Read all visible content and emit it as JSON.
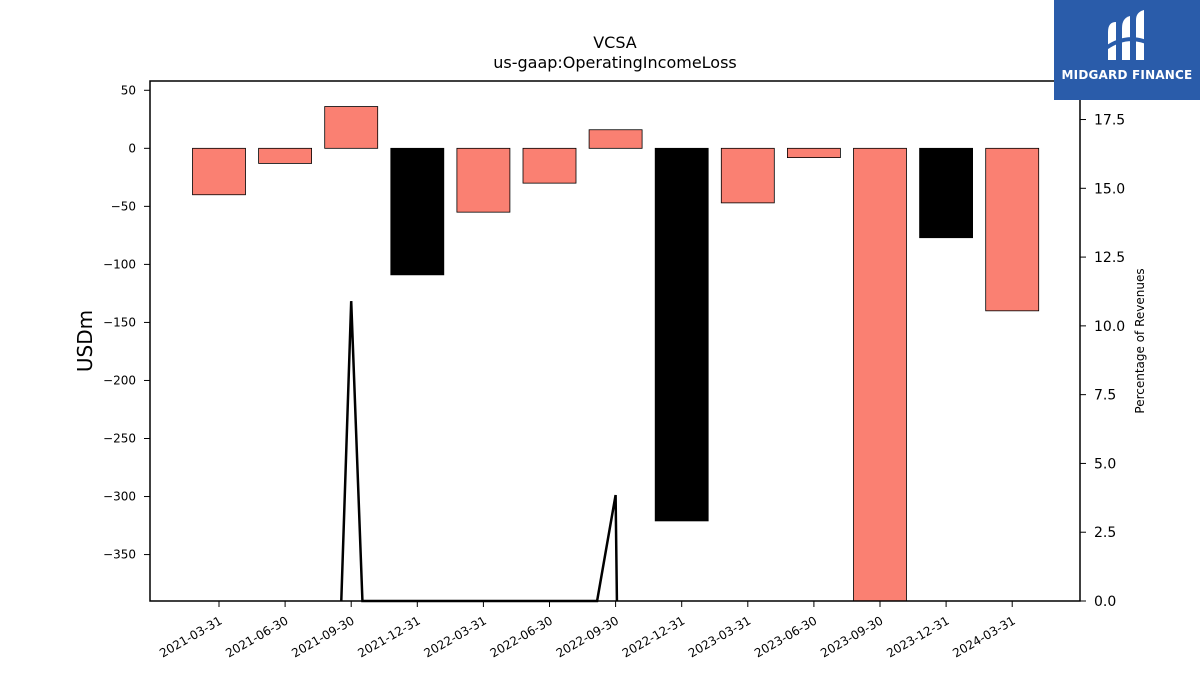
{
  "chart_data": {
    "type": "bar",
    "title": "VCSA",
    "subtitle": "us-gaap:OperatingIncomeLoss",
    "ylabel": "USDm",
    "y2label": "Percentage of Revenues",
    "categories": [
      "2021-03-31",
      "2021-06-30",
      "2021-09-30",
      "2021-12-31",
      "2022-03-31",
      "2022-06-30",
      "2022-09-30",
      "2022-12-31",
      "2023-03-31",
      "2023-06-30",
      "2023-09-30",
      "2023-12-31",
      "2024-03-31"
    ],
    "values": [
      -40,
      -13,
      36,
      -109,
      -55,
      -30,
      16,
      -321,
      -47,
      -8,
      -390,
      -77,
      -140
    ],
    "bar_colors": [
      "#fa8072",
      "#fa8072",
      "#fa8072",
      "#000000",
      "#fa8072",
      "#fa8072",
      "#fa8072",
      "#000000",
      "#fa8072",
      "#fa8072",
      "#fa8072",
      "#000000",
      "#fa8072"
    ],
    "ylim": [
      -390,
      58
    ],
    "yticks": [
      50,
      0,
      -50,
      -100,
      -150,
      -200,
      -250,
      -300,
      -350
    ],
    "ytick_labels": [
      "50",
      "0",
      "−50",
      "−100",
      "−150",
      "−200",
      "−250",
      "−300",
      "−350"
    ],
    "y2lim": [
      0,
      18.9
    ],
    "y2ticks": [
      0,
      2.5,
      5,
      7.5,
      10,
      12.5,
      15,
      17.5
    ],
    "y2tick_labels": [
      "0.0",
      "2.5",
      "5.0",
      "7.5",
      "10.0",
      "12.5",
      "15.0",
      "17.5"
    ],
    "line_series": {
      "axis": "right",
      "color": "#000000",
      "points": [
        [
          1.85,
          0
        ],
        [
          2,
          10.9
        ],
        [
          2.17,
          0
        ],
        [
          5.72,
          0
        ],
        [
          6,
          3.85
        ],
        [
          6.02,
          0
        ]
      ]
    },
    "grid": false
  },
  "logo": {
    "text": "MIDGARD FINANCE"
  }
}
